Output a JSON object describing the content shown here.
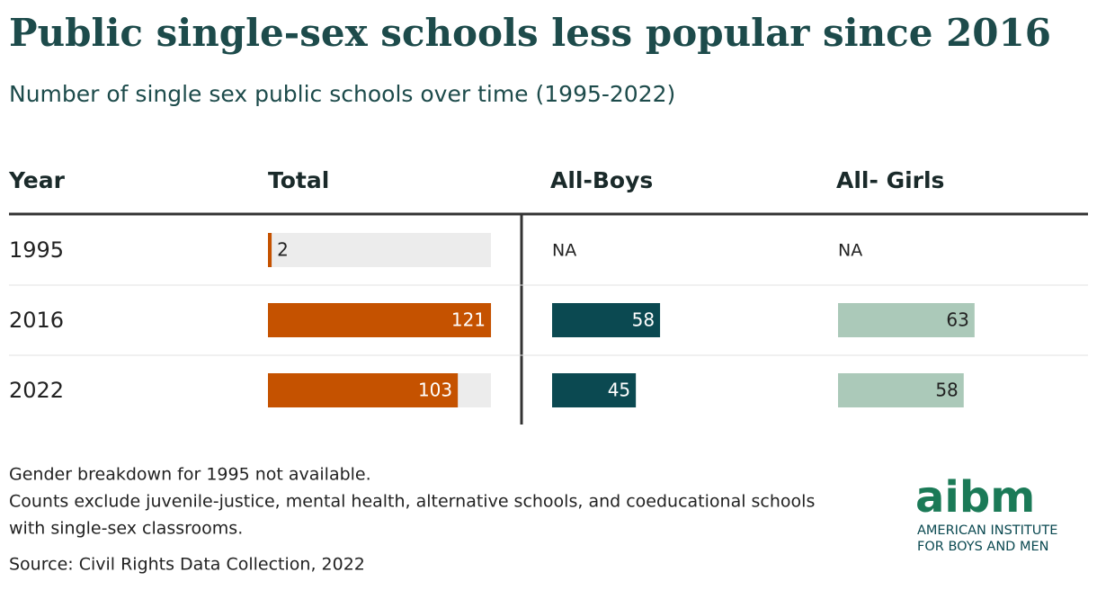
{
  "title": "Public single-sex schools less popular since 2016",
  "subtitle": "Number of single sex public schools over time (1995-2022)",
  "table": {
    "columns": [
      "Year",
      "Total",
      "All-Boys",
      "All- Girls"
    ],
    "rows": [
      {
        "year": "1995",
        "total": 2,
        "boys": "NA",
        "girls": "NA"
      },
      {
        "year": "2016",
        "total": 121,
        "boys": 58,
        "girls": 63
      },
      {
        "year": "2022",
        "total": 103,
        "boys": 45,
        "girls": 58
      }
    ]
  },
  "colors": {
    "total": "#c55200",
    "boys": "#0b4951",
    "girls": "#abc9b9"
  },
  "notes": [
    "Gender breakdown for 1995 not available.",
    "Counts exclude juvenile-justice, mental health, alternative schools, and coeducational schools",
    "with single-sex classrooms."
  ],
  "source": "Source: Civil Rights Data Collection, 2022",
  "logo": {
    "mark": "aibm",
    "lines": [
      "AMERICAN INSTITUTE",
      "FOR BOYS AND MEN"
    ]
  }
}
